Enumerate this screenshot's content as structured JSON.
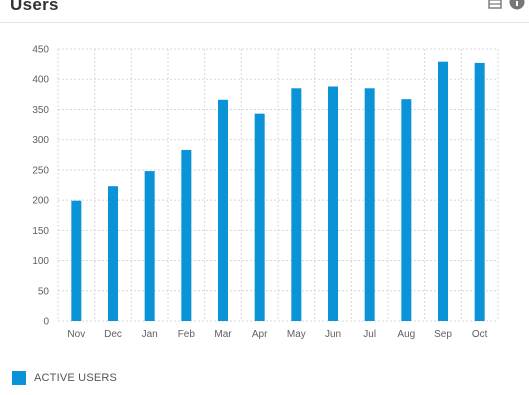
{
  "card": {
    "title": "Users"
  },
  "header_icons": [
    {
      "name": "table-view-icon"
    },
    {
      "name": "info-icon"
    }
  ],
  "colors": {
    "bar": "#0a93d6",
    "grid": "#d7d7d7",
    "axis_text": "#606060"
  },
  "chart_data": {
    "type": "bar",
    "categories": [
      "Nov",
      "Dec",
      "Jan",
      "Feb",
      "Mar",
      "Apr",
      "May",
      "Jun",
      "Jul",
      "Aug",
      "Sep",
      "Oct"
    ],
    "series": [
      {
        "name": "ACTIVE USERS",
        "values": [
          199,
          223,
          248,
          283,
          366,
          343,
          385,
          388,
          385,
          367,
          429,
          427
        ]
      }
    ],
    "yticks": [
      0,
      50,
      100,
      150,
      200,
      250,
      300,
      350,
      400,
      450
    ],
    "ylim": [
      0,
      450
    ],
    "grid": true,
    "grid_style": "dotted",
    "legend_position": "bottom-left"
  }
}
